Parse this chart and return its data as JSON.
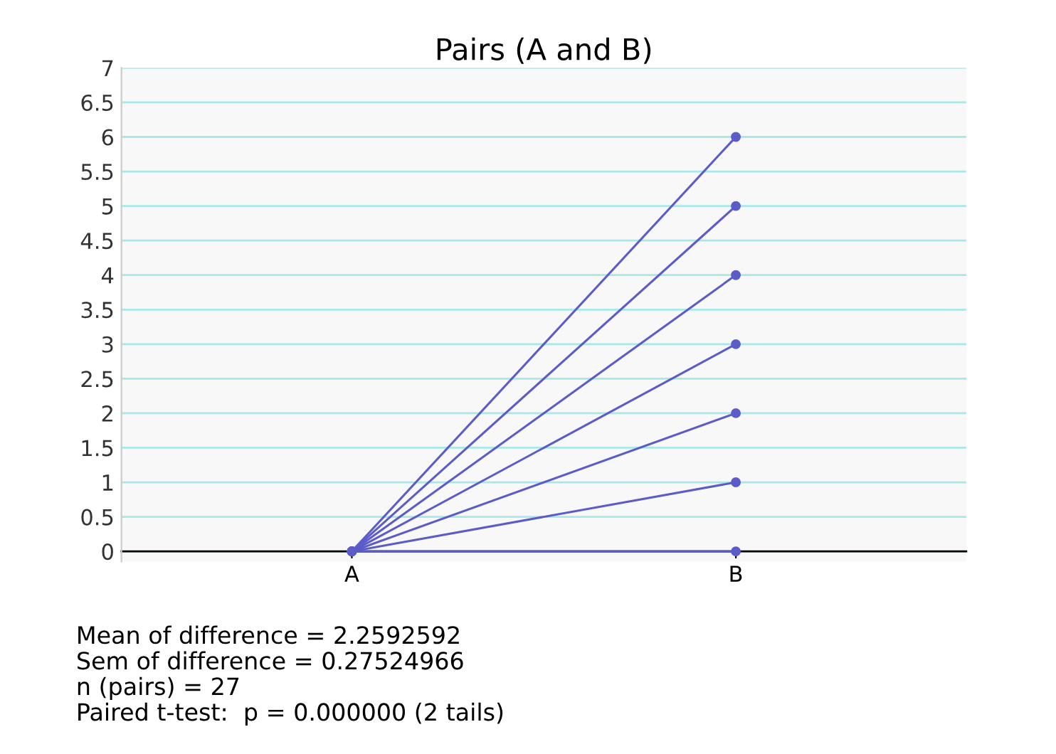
{
  "chart_data": {
    "type": "line",
    "title": "Pairs (A and B)",
    "categories": [
      "A",
      "B"
    ],
    "series": [
      {
        "color": "#5c5cc8",
        "values": [
          0,
          0
        ]
      },
      {
        "color": "#5c5cc8",
        "values": [
          0,
          1
        ]
      },
      {
        "color": "#5c5cc8",
        "values": [
          0,
          2
        ]
      },
      {
        "color": "#5c5cc8",
        "values": [
          0,
          3
        ]
      },
      {
        "color": "#5c5cc8",
        "values": [
          0,
          4
        ]
      },
      {
        "color": "#5c5cc8",
        "values": [
          0,
          5
        ]
      },
      {
        "color": "#5c5cc8",
        "values": [
          0,
          6
        ]
      }
    ],
    "ylim": [
      -0.15,
      7
    ],
    "yticks": [
      0,
      0.5,
      1,
      1.5,
      2,
      2.5,
      3,
      3.5,
      4,
      4.5,
      5,
      5.5,
      6,
      6.5,
      7
    ],
    "grid": "y",
    "marker": "circle",
    "legend": false,
    "annotations": [
      "Mean of difference = 2.2592592",
      "Sem of difference = 0.27524966",
      "n (pairs) = 27",
      "Paired t-test:  p = 0.000000 (2 tails)"
    ]
  }
}
